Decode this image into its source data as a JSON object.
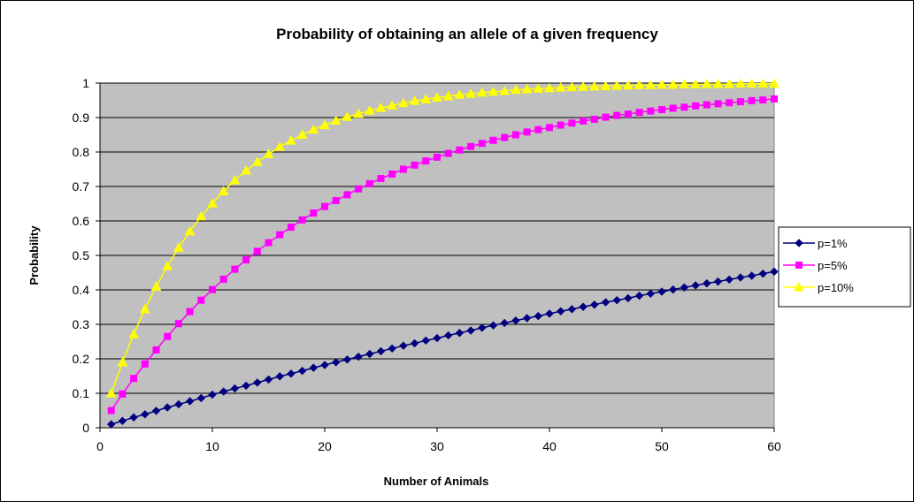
{
  "chart_data": {
    "type": "line",
    "title": "Probability of obtaining an allele of a given frequency",
    "xlabel": "Number of Animals",
    "ylabel": "Probability",
    "xlim": [
      0,
      60
    ],
    "ylim": [
      0,
      1
    ],
    "x_ticks": [
      "0",
      "10",
      "20",
      "30",
      "40",
      "50",
      "60"
    ],
    "y_ticks": [
      "0",
      "0.1",
      "0.2",
      "0.3",
      "0.4",
      "0.5",
      "0.6",
      "0.7",
      "0.8",
      "0.9",
      "1"
    ],
    "grid": true,
    "plot_background": "#c0c0c0",
    "legend_position": "right",
    "x": [
      1,
      2,
      3,
      4,
      5,
      6,
      7,
      8,
      9,
      10,
      11,
      12,
      13,
      14,
      15,
      16,
      17,
      18,
      19,
      20,
      21,
      22,
      23,
      24,
      25,
      26,
      27,
      28,
      29,
      30,
      31,
      32,
      33,
      34,
      35,
      36,
      37,
      38,
      39,
      40,
      41,
      42,
      43,
      44,
      45,
      46,
      47,
      48,
      49,
      50,
      51,
      52,
      53,
      54,
      55,
      56,
      57,
      58,
      59,
      60
    ],
    "series": [
      {
        "name": "p=1%",
        "color": "#000080",
        "marker": "diamond",
        "values": [
          0.01,
          0.02,
          0.03,
          0.039,
          0.049,
          0.059,
          0.068,
          0.077,
          0.086,
          0.096,
          0.105,
          0.114,
          0.122,
          0.131,
          0.14,
          0.149,
          0.157,
          0.165,
          0.174,
          0.182,
          0.19,
          0.198,
          0.206,
          0.214,
          0.222,
          0.23,
          0.238,
          0.245,
          0.253,
          0.26,
          0.268,
          0.275,
          0.282,
          0.29,
          0.297,
          0.304,
          0.311,
          0.318,
          0.324,
          0.331,
          0.338,
          0.344,
          0.351,
          0.357,
          0.364,
          0.37,
          0.376,
          0.383,
          0.389,
          0.395,
          0.401,
          0.407,
          0.413,
          0.419,
          0.424,
          0.43,
          0.436,
          0.441,
          0.447,
          0.453
        ]
      },
      {
        "name": "p=5%",
        "color": "#ff00ff",
        "marker": "square",
        "values": [
          0.05,
          0.098,
          0.143,
          0.185,
          0.226,
          0.265,
          0.302,
          0.337,
          0.37,
          0.401,
          0.431,
          0.46,
          0.487,
          0.512,
          0.537,
          0.56,
          0.582,
          0.603,
          0.623,
          0.642,
          0.659,
          0.676,
          0.693,
          0.708,
          0.723,
          0.736,
          0.75,
          0.762,
          0.774,
          0.785,
          0.796,
          0.806,
          0.816,
          0.825,
          0.834,
          0.842,
          0.85,
          0.858,
          0.865,
          0.871,
          0.878,
          0.884,
          0.89,
          0.895,
          0.901,
          0.906,
          0.91,
          0.915,
          0.919,
          0.923,
          0.927,
          0.93,
          0.934,
          0.937,
          0.94,
          0.943,
          0.946,
          0.949,
          0.951,
          0.954
        ]
      },
      {
        "name": "p=10%",
        "color": "#ffff00",
        "marker": "triangle",
        "values": [
          0.1,
          0.19,
          0.271,
          0.344,
          0.41,
          0.469,
          0.522,
          0.57,
          0.613,
          0.651,
          0.686,
          0.718,
          0.746,
          0.771,
          0.794,
          0.815,
          0.833,
          0.85,
          0.865,
          0.878,
          0.891,
          0.902,
          0.911,
          0.92,
          0.928,
          0.935,
          0.942,
          0.948,
          0.953,
          0.958,
          0.962,
          0.966,
          0.969,
          0.972,
          0.975,
          0.977,
          0.98,
          0.982,
          0.984,
          0.985,
          0.987,
          0.988,
          0.989,
          0.99,
          0.991,
          0.992,
          0.993,
          0.994,
          0.994,
          0.995,
          0.995,
          0.996,
          0.996,
          0.997,
          0.997,
          0.997,
          0.998,
          0.998,
          0.998,
          0.998
        ]
      }
    ]
  }
}
